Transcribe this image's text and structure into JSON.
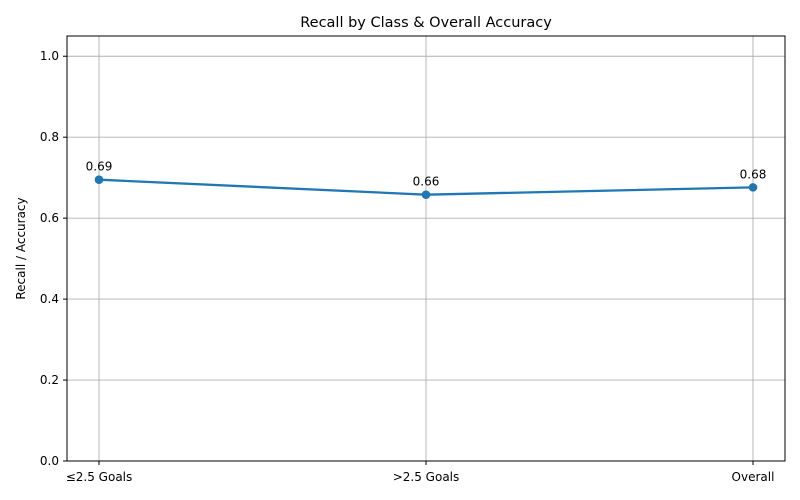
{
  "chart_data": {
    "type": "line",
    "title": "Recall by Class & Overall Accuracy",
    "xlabel": "",
    "ylabel": "Recall / Accuracy",
    "categories": [
      "≤2.5 Goals",
      ">2.5 Goals",
      "Overall"
    ],
    "series": [
      {
        "values": [
          0.695,
          0.658,
          0.676
        ],
        "labels": [
          "0.69",
          "0.66",
          "0.68"
        ],
        "color": "#1f77b4",
        "marker": "circle"
      }
    ],
    "ylim": [
      0.0,
      1.05
    ],
    "yticks": [
      0.0,
      0.2,
      0.4,
      0.6,
      0.8,
      1.0
    ],
    "ytick_labels": [
      "0.0",
      "0.2",
      "0.4",
      "0.6",
      "0.8",
      "1.0"
    ],
    "grid": true,
    "legend": "none"
  }
}
